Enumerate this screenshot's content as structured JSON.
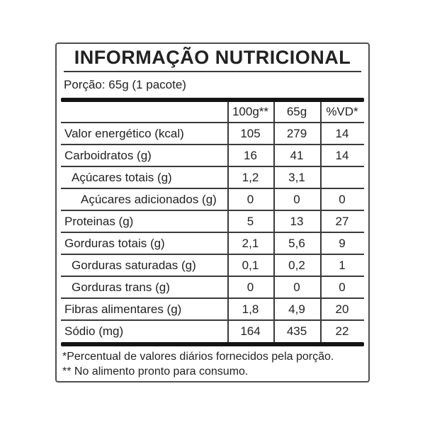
{
  "label": {
    "title": "INFORMAÇÃO NUTRICIONAL",
    "portion": "Porção: 65g (1 pacote)",
    "columns": [
      "100g**",
      "65g",
      "%VD*"
    ],
    "rows": [
      {
        "name": "Valor energético (kcal)",
        "indent": 0,
        "values": [
          "105",
          "279",
          "14"
        ]
      },
      {
        "name": "Carboidratos (g)",
        "indent": 0,
        "values": [
          "16",
          "41",
          "14"
        ]
      },
      {
        "name": "Açúcares totais (g)",
        "indent": 1,
        "values": [
          "1,2",
          "3,1",
          ""
        ]
      },
      {
        "name": "Açúcares adicionados (g)",
        "indent": 2,
        "values": [
          "0",
          "0",
          "0"
        ]
      },
      {
        "name": "Proteinas (g)",
        "indent": 0,
        "values": [
          "5",
          "13",
          "27"
        ]
      },
      {
        "name": "Gorduras totais (g)",
        "indent": 0,
        "values": [
          "2,1",
          "5,6",
          "9"
        ]
      },
      {
        "name": "Gorduras saturadas (g)",
        "indent": 1,
        "values": [
          "0,1",
          "0,2",
          "1"
        ]
      },
      {
        "name": "Gorduras trans (g)",
        "indent": 1,
        "values": [
          "0",
          "0",
          "0"
        ]
      },
      {
        "name": "Fibras alimentares (g)",
        "indent": 0,
        "values": [
          "1,8",
          "4,9",
          "20"
        ]
      },
      {
        "name": "Sódio (mg)",
        "indent": 0,
        "values": [
          "164",
          "435",
          "22"
        ]
      }
    ],
    "footnotes": [
      "*Percentual de valores diários fornecidos pela porção.",
      "** No alimento pronto para consumo."
    ],
    "colors": {
      "text": "#222222",
      "line": "#3a3a3a",
      "bar": "#141414",
      "border": "#4f4f4f",
      "background": "#ffffff"
    }
  }
}
